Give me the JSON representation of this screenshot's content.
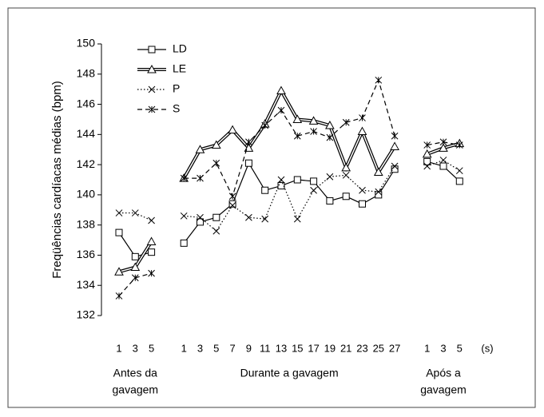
{
  "chart_data": {
    "type": "line",
    "y_label": "Freqüências cardíacas médias (bpm)",
    "x_unit": "(s)",
    "categories": [
      "1",
      "3",
      "5",
      null,
      "1",
      "3",
      "5",
      "7",
      "9",
      "11",
      "13",
      "15",
      "17",
      "19",
      "21",
      "23",
      "25",
      "27",
      null,
      "1",
      "3",
      "5"
    ],
    "groups": [
      [
        "Antes da",
        "gavagem"
      ],
      [
        "Durante a gavagem"
      ],
      [
        "Após a",
        "gavagem"
      ]
    ],
    "ylim": [
      132,
      150
    ],
    "yticks": [
      132,
      134,
      136,
      138,
      140,
      142,
      144,
      146,
      148,
      150
    ],
    "legend": "top-left",
    "series": [
      {
        "name": "LD",
        "color": "#000000",
        "line": "solid",
        "marker": "square",
        "values": [
          137.5,
          135.9,
          136.2,
          null,
          136.8,
          138.2,
          138.5,
          139.4,
          142.1,
          140.3,
          140.6,
          141.0,
          140.9,
          139.6,
          139.9,
          139.4,
          140.0,
          141.7,
          null,
          142.2,
          141.9,
          140.9
        ]
      },
      {
        "name": "LE",
        "color": "#000000",
        "line": "double",
        "marker": "triangle",
        "values": [
          134.9,
          135.2,
          136.9,
          null,
          141.1,
          143.0,
          143.3,
          144.3,
          143.1,
          144.7,
          146.9,
          145.0,
          144.9,
          144.6,
          141.8,
          144.2,
          141.5,
          143.2,
          null,
          142.7,
          143.1,
          143.4
        ]
      },
      {
        "name": "P",
        "color": "#000000",
        "line": "dotted",
        "marker": "x",
        "values": [
          138.8,
          138.8,
          138.3,
          null,
          138.6,
          138.5,
          137.6,
          139.3,
          138.5,
          138.4,
          141.0,
          138.4,
          140.3,
          141.2,
          141.3,
          140.3,
          140.2,
          141.9,
          null,
          141.9,
          142.3,
          141.6
        ]
      },
      {
        "name": "S",
        "color": "#000000",
        "line": "dashed",
        "marker": "asterisk",
        "values": [
          133.3,
          134.5,
          134.8,
          null,
          141.1,
          141.1,
          142.1,
          139.9,
          143.5,
          144.6,
          145.6,
          143.9,
          144.2,
          143.8,
          144.8,
          145.1,
          147.6,
          143.9,
          null,
          143.3,
          143.5,
          143.3
        ]
      }
    ]
  }
}
